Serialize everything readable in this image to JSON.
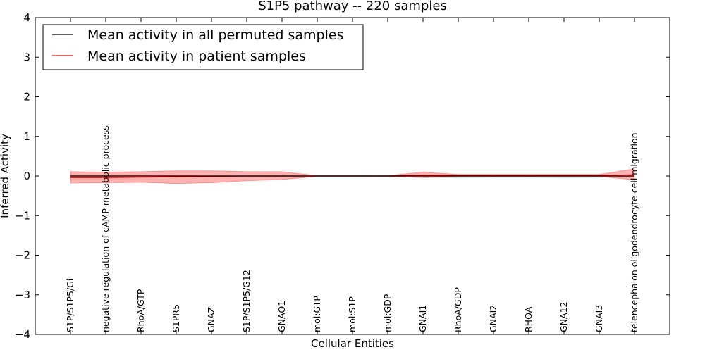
{
  "chart_data": {
    "type": "line",
    "title": "S1P5 pathway -- 220 samples",
    "xlabel": "Cellular Entities",
    "ylabel": "Inferred Activity",
    "ylim": [
      -4,
      4
    ],
    "yticks": [
      -4,
      -3,
      -2,
      -1,
      0,
      1,
      2,
      3,
      4
    ],
    "ytick_labels": [
      "−4",
      "−3",
      "−2",
      "−1",
      "0",
      "1",
      "2",
      "3",
      "4"
    ],
    "categories": [
      "S1P/S1P5/Gi",
      "negative regulation of cAMP metabolic process",
      "RhoA/GTP",
      "S1PR5",
      "GNAZ",
      "S1P/S1P5/G12",
      "GNAO1",
      "mol:GTP",
      "mol:S1P",
      "mol:GDP",
      "GNAI1",
      "RhoA/GDP",
      "GNAI2",
      "RHOA",
      "GNA12",
      "GNAI3",
      "telencephalon oligodendrocyte cell migration"
    ],
    "legend_location": "upper left",
    "series": [
      {
        "name": "Mean activity in all permuted samples",
        "color": "#000000",
        "values": [
          0.0,
          0.0,
          0.0,
          0.0,
          0.0,
          0.0,
          0.0,
          0.0,
          0.0,
          0.0,
          0.0,
          0.0,
          0.0,
          0.0,
          0.0,
          0.0,
          0.0
        ],
        "band_lower": [
          -0.02,
          -0.02,
          -0.02,
          -0.02,
          -0.02,
          -0.02,
          -0.02,
          -0.01,
          -0.01,
          -0.02,
          -0.04,
          -0.05,
          -0.04,
          -0.04,
          -0.05,
          -0.04,
          -0.02
        ],
        "band_upper": [
          0.02,
          0.02,
          0.02,
          0.02,
          0.02,
          0.02,
          0.02,
          0.01,
          0.01,
          0.02,
          0.03,
          0.04,
          0.04,
          0.04,
          0.04,
          0.04,
          0.02
        ],
        "band_color": "#c8c8c8"
      },
      {
        "name": "Mean activity in patient samples",
        "color": "#ff0000",
        "values": [
          -0.04,
          -0.04,
          -0.03,
          -0.02,
          -0.01,
          0.0,
          0.0,
          0.0,
          0.0,
          0.0,
          0.02,
          0.02,
          0.02,
          0.02,
          0.02,
          0.02,
          0.03
        ],
        "band_lower": [
          -0.18,
          -0.17,
          -0.16,
          -0.19,
          -0.17,
          -0.12,
          -0.09,
          -0.01,
          -0.01,
          -0.01,
          -0.04,
          -0.01,
          -0.01,
          -0.01,
          -0.01,
          -0.01,
          -0.1
        ],
        "band_upper": [
          0.11,
          0.1,
          0.11,
          0.13,
          0.13,
          0.11,
          0.11,
          0.01,
          0.01,
          0.01,
          0.1,
          0.04,
          0.04,
          0.04,
          0.04,
          0.04,
          0.18
        ],
        "band_color": "#ff0000"
      }
    ]
  }
}
